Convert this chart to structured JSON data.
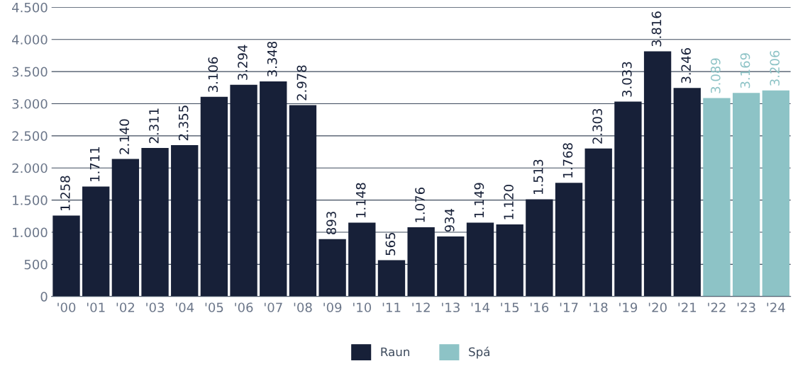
{
  "chart_data": {
    "type": "bar",
    "stacked": true,
    "categories": [
      "'00",
      "'01",
      "'02",
      "'03",
      "'04",
      "'05",
      "'06",
      "'07",
      "'08",
      "'09",
      "'10",
      "'11",
      "'12",
      "'13",
      "'14",
      "'15",
      "'16",
      "'17",
      "'18",
      "'19",
      "'20",
      "'21",
      "'22",
      "'23",
      "'24"
    ],
    "series": [
      {
        "name": "Raun",
        "color": "#172038",
        "values": [
          1258,
          1711,
          2140,
          2311,
          2355,
          3106,
          3294,
          3348,
          2978,
          893,
          1148,
          565,
          1076,
          934,
          1149,
          1120,
          1513,
          1768,
          2303,
          3033,
          3816,
          3246,
          null,
          null,
          null
        ],
        "value_labels": [
          "1.258",
          "1.711",
          "2.140",
          "2.311",
          "2.355",
          "3.106",
          "3.294",
          "3.348",
          "2.978",
          "893",
          "1.148",
          "565",
          "1.076",
          "934",
          "1.149",
          "1.120",
          "1.513",
          "1.768",
          "2.303",
          "3.033",
          "3.816",
          "3.246",
          null,
          null,
          null
        ]
      },
      {
        "name": "Spá",
        "color": "#8dc3c6",
        "values": [
          null,
          null,
          null,
          null,
          null,
          null,
          null,
          null,
          null,
          null,
          null,
          null,
          null,
          null,
          null,
          null,
          null,
          null,
          null,
          null,
          null,
          null,
          3089,
          3169,
          3206
        ],
        "value_labels": [
          null,
          null,
          null,
          null,
          null,
          null,
          null,
          null,
          null,
          null,
          null,
          null,
          null,
          null,
          null,
          null,
          null,
          null,
          null,
          null,
          null,
          null,
          "3.089",
          "3.169",
          "3.206"
        ]
      }
    ],
    "ylim": [
      0,
      4500
    ],
    "yticks": [
      {
        "value": 0,
        "label": "0"
      },
      {
        "value": 500,
        "label": "500"
      },
      {
        "value": 1000,
        "label": "1.000"
      },
      {
        "value": 1500,
        "label": "1.500"
      },
      {
        "value": 2000,
        "label": "2.000"
      },
      {
        "value": 2500,
        "label": "2.500"
      },
      {
        "value": 3000,
        "label": "3.000"
      },
      {
        "value": 3500,
        "label": "3.500"
      },
      {
        "value": 4000,
        "label": "4.000"
      },
      {
        "value": 4500,
        "label": "4.500"
      }
    ],
    "grid": "y",
    "legend": "bottom"
  }
}
